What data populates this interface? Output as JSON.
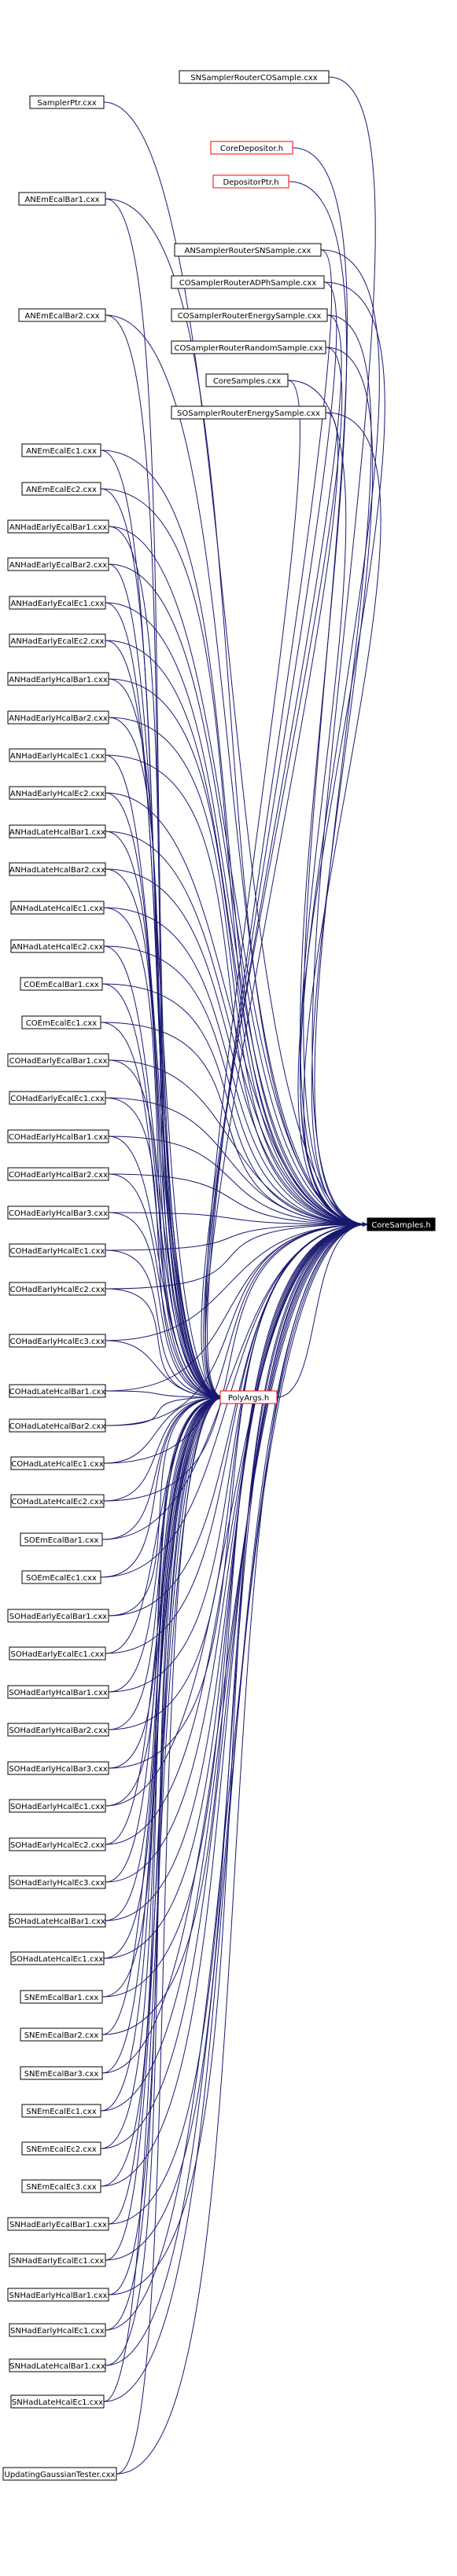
{
  "graph": {
    "edge_color": "#191970",
    "target": "CoreSamples.h",
    "hub": "PolyArgs.h",
    "nodes": [
      {
        "id": "SamplerPtr",
        "label": "SamplerPtr.cxx"
      },
      {
        "id": "SNSRCO",
        "label": "SNSamplerRouterCOSample.cxx"
      },
      {
        "id": "CoreDepositor",
        "label": "CoreDepositor.h",
        "red": true
      },
      {
        "id": "DepositorPtr",
        "label": "DepositorPtr.h",
        "red": true
      },
      {
        "id": "ANEmEcalBar1",
        "label": "ANEmEcalBar1.cxx"
      },
      {
        "id": "ANSRSN",
        "label": "ANSamplerRouterSNSample.cxx"
      },
      {
        "id": "COSRADP",
        "label": "COSamplerRouterADPhSample.cxx"
      },
      {
        "id": "COSREnergy",
        "label": "COSamplerRouterEnergySample.cxx"
      },
      {
        "id": "COSRRandom",
        "label": "COSamplerRouterRandomSample.cxx"
      },
      {
        "id": "ANEmEcalBar2",
        "label": "ANEmEcalBar2.cxx"
      },
      {
        "id": "CoreSamplesCxx",
        "label": "CoreSamples.cxx"
      },
      {
        "id": "SOSREnergy",
        "label": "SOSamplerRouterEnergySample.cxx"
      },
      {
        "id": "ANEmEcalEc1",
        "label": "ANEmEcalEc1.cxx"
      },
      {
        "id": "ANEmEcalEc2",
        "label": "ANEmEcalEc2.cxx"
      },
      {
        "id": "ANHadEarlyEcalBar1",
        "label": "ANHadEarlyEcalBar1.cxx"
      },
      {
        "id": "ANHadEarlyEcalBar2",
        "label": "ANHadEarlyEcalBar2.cxx"
      },
      {
        "id": "ANHadEarlyEcalEc1",
        "label": "ANHadEarlyEcalEc1.cxx"
      },
      {
        "id": "ANHadEarlyEcalEc2",
        "label": "ANHadEarlyEcalEc2.cxx"
      },
      {
        "id": "ANHadEarlyHcalBar1",
        "label": "ANHadEarlyHcalBar1.cxx"
      },
      {
        "id": "ANHadEarlyHcalBar2",
        "label": "ANHadEarlyHcalBar2.cxx"
      },
      {
        "id": "ANHadEarlyHcalEc1",
        "label": "ANHadEarlyHcalEc1.cxx"
      },
      {
        "id": "ANHadEarlyHcalEc2",
        "label": "ANHadEarlyHcalEc2.cxx"
      },
      {
        "id": "ANHadLateHcalBar1",
        "label": "ANHadLateHcalBar1.cxx"
      },
      {
        "id": "ANHadLateHcalBar2",
        "label": "ANHadLateHcalBar2.cxx"
      },
      {
        "id": "ANHadLateHcalEc1",
        "label": "ANHadLateHcalEc1.cxx"
      },
      {
        "id": "ANHadLateHcalEc2",
        "label": "ANHadLateHcalEc2.cxx"
      },
      {
        "id": "COEmEcalBar1",
        "label": "COEmEcalBar1.cxx"
      },
      {
        "id": "COEmEcalEc1",
        "label": "COEmEcalEc1.cxx"
      },
      {
        "id": "COHadEarlyEcalBar1",
        "label": "COHadEarlyEcalBar1.cxx"
      },
      {
        "id": "COHadEarlyEcalEc1",
        "label": "COHadEarlyEcalEc1.cxx"
      },
      {
        "id": "COHadEarlyHcalBar1",
        "label": "COHadEarlyHcalBar1.cxx"
      },
      {
        "id": "COHadEarlyHcalBar2",
        "label": "COHadEarlyHcalBar2.cxx"
      },
      {
        "id": "COHadEarlyHcalBar3",
        "label": "COHadEarlyHcalBar3.cxx"
      },
      {
        "id": "COHadEarlyHcalEc1",
        "label": "COHadEarlyHcalEc1.cxx"
      },
      {
        "id": "COHadEarlyHcalEc2",
        "label": "COHadEarlyHcalEc2.cxx"
      },
      {
        "id": "COHadEarlyHcalEc3",
        "label": "COHadEarlyHcalEc3.cxx"
      },
      {
        "id": "CoreSamplesH",
        "label": "CoreSamples.h",
        "target": true
      },
      {
        "id": "COHadLateHcalBar1",
        "label": "COHadLateHcalBar1.cxx"
      },
      {
        "id": "PolyArgs",
        "label": "PolyArgs.h",
        "red": true
      },
      {
        "id": "COHadLateHcalBar2",
        "label": "COHadLateHcalBar2.cxx"
      },
      {
        "id": "COHadLateHcalEc1",
        "label": "COHadLateHcalEc1.cxx"
      },
      {
        "id": "COHadLateHcalEc2",
        "label": "COHadLateHcalEc2.cxx"
      },
      {
        "id": "SOEmEcalBar1",
        "label": "SOEmEcalBar1.cxx"
      },
      {
        "id": "SOEmEcalEc1",
        "label": "SOEmEcalEc1.cxx"
      },
      {
        "id": "SOHadEarlyEcalBar1",
        "label": "SOHadEarlyEcalBar1.cxx"
      },
      {
        "id": "SOHadEarlyEcalEc1",
        "label": "SOHadEarlyEcalEc1.cxx"
      },
      {
        "id": "SOHadEarlyHcalBar1",
        "label": "SOHadEarlyHcalBar1.cxx"
      },
      {
        "id": "SOHadEarlyHcalBar2",
        "label": "SOHadEarlyHcalBar2.cxx"
      },
      {
        "id": "SOHadEarlyHcalBar3",
        "label": "SOHadEarlyHcalBar3.cxx"
      },
      {
        "id": "SOHadEarlyHcalEc1",
        "label": "SOHadEarlyHcalEc1.cxx"
      },
      {
        "id": "SOHadEarlyHcalEc2",
        "label": "SOHadEarlyHcalEc2.cxx"
      },
      {
        "id": "SOHadEarlyHcalEc3",
        "label": "SOHadEarlyHcalEc3.cxx"
      },
      {
        "id": "SOHadLateHcalBar1",
        "label": "SOHadLateHcalBar1.cxx"
      },
      {
        "id": "SOHadLateHcalEc1",
        "label": "SOHadLateHcalEc1.cxx"
      },
      {
        "id": "SNEmEcalBar1",
        "label": "SNEmEcalBar1.cxx"
      },
      {
        "id": "SNEmEcalBar2",
        "label": "SNEmEcalBar2.cxx"
      },
      {
        "id": "SNEmEcalBar3",
        "label": "SNEmEcalBar3.cxx"
      },
      {
        "id": "SNEmEcalEc1",
        "label": "SNEmEcalEc1.cxx"
      },
      {
        "id": "SNEmEcalEc2",
        "label": "SNEmEcalEc2.cxx"
      },
      {
        "id": "SNEmEcalEc3",
        "label": "SNEmEcalEc3.cxx"
      },
      {
        "id": "SNHadEarlyEcalBar1",
        "label": "SNHadEarlyEcalBar1.cxx"
      },
      {
        "id": "SNHadEarlyEcalEc1",
        "label": "SNHadEarlyEcalEc1.cxx"
      },
      {
        "id": "SNHadEarlyHcalBar1",
        "label": "SNHadEarlyHcalBar1.cxx"
      },
      {
        "id": "SNHadEarlyHcalEc1",
        "label": "SNHadEarlyHcalEc1.cxx"
      },
      {
        "id": "SNHadLateHcalBar1",
        "label": "SNHadLateHcalBar1.cxx"
      },
      {
        "id": "SNHadLateHcalEc1",
        "label": "SNHadLateHcalEc1.cxx"
      },
      {
        "id": "UpdatingGaussianTester",
        "label": "UpdatingGaussianTester.cxx"
      }
    ]
  }
}
